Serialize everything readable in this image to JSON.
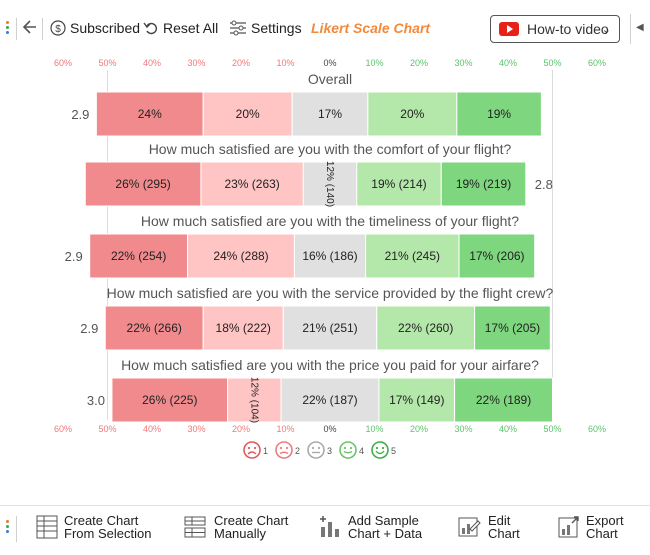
{
  "toolbar": {
    "subscribed_label": "Subscribed",
    "reset_label": "Reset All",
    "settings_label": "Settings",
    "chart_title": "Likert Scale Chart",
    "howto_label": "How-to video"
  },
  "bottom_toolbar": {
    "items": [
      {
        "line1": "Create Chart",
        "line2": "From Selection",
        "icon": "table-icon"
      },
      {
        "line1": "Create Chart",
        "line2": "Manually",
        "icon": "manual-table-icon"
      },
      {
        "line1": "Add Sample",
        "line2": "Chart + Data",
        "icon": "sample-data-icon"
      },
      {
        "line1": "Edit",
        "line2": "Chart",
        "icon": "edit-chart-icon"
      },
      {
        "line1": "Export",
        "line2": "Chart",
        "icon": "export-chart-icon"
      }
    ]
  },
  "chart_data": {
    "type": "bar",
    "subtype": "diverging-stacked-likert",
    "axis": {
      "ticks": [
        -60,
        -50,
        -40,
        -30,
        -20,
        -10,
        0,
        10,
        20,
        30,
        40,
        50,
        60
      ],
      "tick_labels": [
        "60%",
        "50%",
        "40%",
        "30%",
        "20%",
        "10%",
        "0%",
        "10%",
        "20%",
        "30%",
        "40%",
        "50%",
        "60%"
      ],
      "range": [
        -60,
        60
      ],
      "gridlines": "vertical at ±50%"
    },
    "colors": {
      "scale": [
        "#f08a8c",
        "#ffc4c4",
        "#e0e0e0",
        "#b4e8aa",
        "#7ed67f"
      ],
      "neg_tick": "#f0787a",
      "pos_tick": "#5cc26b",
      "zero_tick": "#444444"
    },
    "legend": {
      "position": "bottom-center",
      "items": [
        {
          "label": "1",
          "icon": "very-sad-face-icon"
        },
        {
          "label": "2",
          "icon": "sad-face-icon"
        },
        {
          "label": "3",
          "icon": "neutral-face-icon"
        },
        {
          "label": "4",
          "icon": "happy-face-icon"
        },
        {
          "label": "5",
          "icon": "very-happy-face-icon"
        }
      ]
    },
    "series_names": [
      "1",
      "2",
      "3",
      "4",
      "5"
    ],
    "questions": [
      {
        "title": "Overall",
        "score": "2.9",
        "score_side": "left",
        "values": [
          24,
          20,
          17,
          20,
          19
        ],
        "labels": [
          "24%",
          "20%",
          "17%",
          "20%",
          "19%"
        ],
        "rotated": [
          false,
          false,
          false,
          false,
          false
        ]
      },
      {
        "title": "How much satisfied are you with the comfort of your flight?",
        "score": "2.8",
        "score_side": "right",
        "values": [
          26,
          23,
          12,
          19,
          19
        ],
        "labels": [
          "26% (295)",
          "23% (263)",
          "12% (140)",
          "19% (214)",
          "19% (219)"
        ],
        "rotated": [
          false,
          false,
          true,
          false,
          false
        ]
      },
      {
        "title": "How much satisfied are you with the timeliness of your flight?",
        "score": "2.9",
        "score_side": "left",
        "values": [
          22,
          24,
          16,
          21,
          17
        ],
        "labels": [
          "22% (254)",
          "24% (288)",
          "16% (186)",
          "21% (245)",
          "17% (206)"
        ],
        "rotated": [
          false,
          false,
          false,
          false,
          false
        ]
      },
      {
        "title": "How much satisfied are you with the service provided by the flight crew?",
        "score": "2.9",
        "score_side": "left",
        "values": [
          22,
          18,
          21,
          22,
          17
        ],
        "labels": [
          "22% (266)",
          "18% (222)",
          "21% (251)",
          "22% (260)",
          "17% (205)"
        ],
        "rotated": [
          false,
          false,
          false,
          false,
          false
        ]
      },
      {
        "title": "How much satisfied are you with the price you paid for your airfare?",
        "score": "3.0",
        "score_side": "left",
        "values": [
          26,
          12,
          22,
          17,
          22
        ],
        "labels": [
          "26% (225)",
          "12% (104)",
          "22% (187)",
          "17% (149)",
          "22% (189)"
        ],
        "rotated": [
          false,
          true,
          false,
          false,
          false
        ]
      }
    ]
  }
}
